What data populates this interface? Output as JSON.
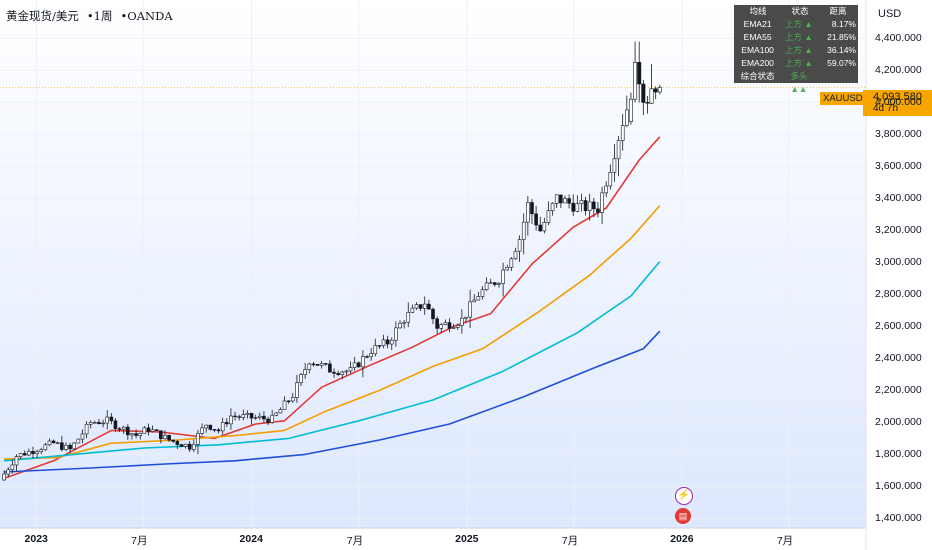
{
  "header": {
    "symbol_name": "黄金现货/美元",
    "interval": "1周",
    "exchange": "OANDA",
    "separator": "•"
  },
  "currency": "USD",
  "ema_table": {
    "headers": [
      "均线",
      "状态",
      "距离"
    ],
    "rows": [
      {
        "name": "EMA21",
        "status": "上方 ▲",
        "distance": "8.17%"
      },
      {
        "name": "EMA55",
        "status": "上方 ▲",
        "distance": "21.85%"
      },
      {
        "name": "EMA100",
        "status": "上方 ▲",
        "distance": "36.14%"
      },
      {
        "name": "EMA200",
        "status": "上方 ▲",
        "distance": "59.07%"
      }
    ],
    "summary": {
      "name": "综合状态",
      "status": "多头 ▲▲",
      "distance": ""
    }
  },
  "price_badge": {
    "symbol": "XAUUSD",
    "price": "4,093.580",
    "countdown": "4d 7h"
  },
  "events": [
    {
      "icon": "lightning-icon",
      "color": "#9c27b0",
      "glyph": "⚡"
    },
    {
      "icon": "us-flag-icon",
      "color": "#e53935",
      "glyph": "▤"
    }
  ],
  "chart_data": {
    "type": "candlestick",
    "title": "黄金现货/美元 · 1周 · OANDA",
    "xlabel": "",
    "ylabel": "",
    "y_ticks": [
      "1,400.000",
      "1,600.000",
      "1,800.000",
      "2,000.000",
      "2,200.000",
      "2,400.000",
      "2,600.000",
      "2,800.000",
      "3,000.000",
      "3,200.000",
      "3,400.000",
      "3,600.000",
      "3,800.000",
      "4,000.000",
      "4,200.000",
      "4,400.000"
    ],
    "y_tick_values": [
      1400,
      1600,
      1800,
      2000,
      2200,
      2400,
      2600,
      2800,
      3000,
      3200,
      3400,
      3600,
      3800,
      4000,
      4200,
      4400
    ],
    "ylim": [
      1340,
      4640
    ],
    "x_ticks": [
      {
        "label": "2023",
        "date": "2023-01-01",
        "bold": true
      },
      {
        "label": "7月",
        "date": "2023-07-01",
        "bold": false
      },
      {
        "label": "2024",
        "date": "2024-01-01",
        "bold": true
      },
      {
        "label": "7月",
        "date": "2024-07-01",
        "bold": false
      },
      {
        "label": "2025",
        "date": "2025-01-01",
        "bold": true
      },
      {
        "label": "7月",
        "date": "2025-07-01",
        "bold": false
      },
      {
        "label": "2026",
        "date": "2026-01-01",
        "bold": true
      },
      {
        "label": "7月",
        "date": "2026-07-01",
        "bold": false
      }
    ],
    "xlim": [
      "2022-10-31",
      "2026-11-09"
    ],
    "last_price": 4093.58,
    "candle_anchors": [
      [
        "2022-11-07",
        1640
      ],
      [
        "2022-12-05",
        1790
      ],
      [
        "2023-02-06",
        1870
      ],
      [
        "2023-03-06",
        1830
      ],
      [
        "2023-04-10",
        2000
      ],
      [
        "2023-05-08",
        2010
      ],
      [
        "2023-06-26",
        1920
      ],
      [
        "2023-07-17",
        1960
      ],
      [
        "2023-08-21",
        1890
      ],
      [
        "2023-09-25",
        1850
      ],
      [
        "2023-10-23",
        1990
      ],
      [
        "2023-11-13",
        1950
      ],
      [
        "2023-12-04",
        2040
      ],
      [
        "2024-02-12",
        2020
      ],
      [
        "2024-03-18",
        2170
      ],
      [
        "2024-04-15",
        2390
      ],
      [
        "2024-05-20",
        2330
      ],
      [
        "2024-06-24",
        2320
      ],
      [
        "2024-07-29",
        2450
      ],
      [
        "2024-08-26",
        2500
      ],
      [
        "2024-09-23",
        2650
      ],
      [
        "2024-10-28",
        2750
      ],
      [
        "2024-11-18",
        2600
      ],
      [
        "2024-12-30",
        2640
      ],
      [
        "2025-01-27",
        2800
      ],
      [
        "2025-03-03",
        2900
      ],
      [
        "2025-04-07",
        3150
      ],
      [
        "2025-04-21",
        3360
      ],
      [
        "2025-05-12",
        3200
      ],
      [
        "2025-06-09",
        3400
      ],
      [
        "2025-07-14",
        3350
      ],
      [
        "2025-08-18",
        3340
      ],
      [
        "2025-09-08",
        3600
      ],
      [
        "2025-09-29",
        3880
      ],
      [
        "2025-10-20",
        4130
      ],
      [
        "2025-11-10",
        4080
      ],
      [
        "2025-11-24",
        4093.58
      ]
    ],
    "big_candles": [
      {
        "date": "2025-10-06",
        "open": 3880,
        "high": 4060,
        "low": 3860,
        "close": 4020
      },
      {
        "date": "2025-10-13",
        "open": 4020,
        "high": 4380,
        "low": 4000,
        "close": 4250
      },
      {
        "date": "2025-10-20",
        "open": 4250,
        "high": 4380,
        "low": 4000,
        "close": 4115
      },
      {
        "date": "2025-10-27",
        "open": 4115,
        "high": 4140,
        "low": 3920,
        "close": 4000
      },
      {
        "date": "2025-11-03",
        "open": 4000,
        "high": 4040,
        "low": 3930,
        "close": 3995
      },
      {
        "date": "2025-11-10",
        "open": 3995,
        "high": 4240,
        "low": 3990,
        "close": 4085
      },
      {
        "date": "2025-11-17",
        "open": 4085,
        "high": 4100,
        "low": 4020,
        "close": 4065
      },
      {
        "date": "2025-11-24",
        "open": 4065,
        "high": 4110,
        "low": 4050,
        "close": 4093.58
      }
    ],
    "series": [
      {
        "name": "EMA21",
        "color": "#e53935",
        "points": [
          [
            "2022-11-07",
            1650
          ],
          [
            "2023-01-30",
            1760
          ],
          [
            "2023-05-08",
            1950
          ],
          [
            "2023-07-31",
            1940
          ],
          [
            "2023-10-30",
            1900
          ],
          [
            "2024-01-08",
            1990
          ],
          [
            "2024-02-26",
            2010
          ],
          [
            "2024-04-29",
            2220
          ],
          [
            "2024-07-22",
            2360
          ],
          [
            "2024-09-30",
            2470
          ],
          [
            "2024-12-09",
            2600
          ],
          [
            "2025-02-10",
            2680
          ],
          [
            "2025-04-21",
            2990
          ],
          [
            "2025-06-30",
            3220
          ],
          [
            "2025-08-25",
            3340
          ],
          [
            "2025-10-20",
            3640
          ],
          [
            "2025-11-24",
            3785
          ]
        ]
      },
      {
        "name": "EMA55",
        "color": "#f59c00",
        "points": [
          [
            "2022-11-07",
            1770
          ],
          [
            "2023-02-06",
            1780
          ],
          [
            "2023-05-08",
            1870
          ],
          [
            "2023-08-28",
            1890
          ],
          [
            "2023-12-11",
            1920
          ],
          [
            "2024-02-26",
            1950
          ],
          [
            "2024-05-06",
            2070
          ],
          [
            "2024-08-05",
            2200
          ],
          [
            "2024-11-04",
            2350
          ],
          [
            "2025-01-27",
            2460
          ],
          [
            "2025-04-28",
            2680
          ],
          [
            "2025-07-28",
            2920
          ],
          [
            "2025-10-06",
            3150
          ],
          [
            "2025-11-24",
            3355
          ]
        ]
      },
      {
        "name": "EMA100",
        "color": "#00bcd4",
        "points": [
          [
            "2022-11-07",
            1760
          ],
          [
            "2023-03-06",
            1800
          ],
          [
            "2023-07-03",
            1840
          ],
          [
            "2023-11-06",
            1860
          ],
          [
            "2024-03-04",
            1900
          ],
          [
            "2024-07-01",
            2010
          ],
          [
            "2024-11-04",
            2140
          ],
          [
            "2025-03-03",
            2320
          ],
          [
            "2025-07-07",
            2560
          ],
          [
            "2025-10-06",
            2790
          ],
          [
            "2025-11-24",
            3005
          ]
        ]
      },
      {
        "name": "EMA200",
        "color": "#1e4fd8",
        "points": [
          [
            "2022-11-07",
            1690
          ],
          [
            "2023-04-03",
            1715
          ],
          [
            "2023-08-07",
            1740
          ],
          [
            "2023-12-04",
            1760
          ],
          [
            "2024-04-01",
            1800
          ],
          [
            "2024-08-05",
            1890
          ],
          [
            "2024-12-02",
            1990
          ],
          [
            "2025-04-07",
            2160
          ],
          [
            "2025-08-04",
            2340
          ],
          [
            "2025-10-27",
            2460
          ],
          [
            "2025-11-24",
            2570
          ]
        ]
      }
    ]
  }
}
